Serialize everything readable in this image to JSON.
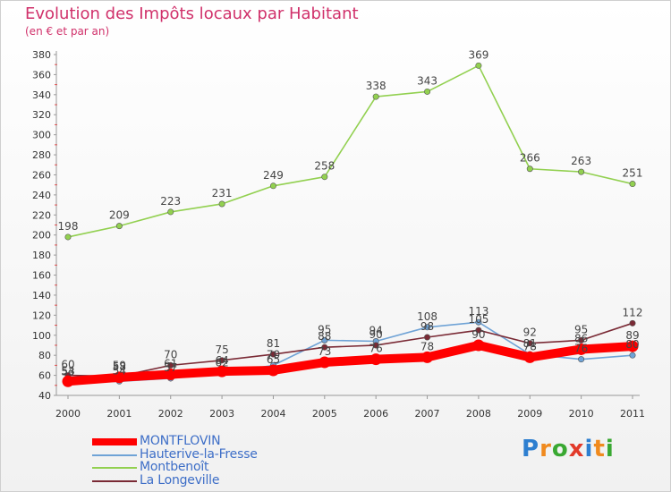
{
  "header": {
    "title": "Evolution des Impôts locaux par Habitant",
    "subtitle": "(en € et par an)"
  },
  "logo": {
    "text": "Proxiti",
    "letter_colors": [
      "#2e7fd0",
      "#f08a1e",
      "#39a832",
      "#e23a2a",
      "#2e7fd0",
      "#f08a1e",
      "#39a832"
    ]
  },
  "chart_data": {
    "type": "line",
    "x": [
      "2000",
      "2001",
      "2002",
      "2003",
      "2004",
      "2005",
      "2006",
      "2007",
      "2008",
      "2009",
      "2010",
      "2011"
    ],
    "ylim": [
      40,
      380
    ],
    "yticks": [
      40,
      60,
      80,
      100,
      120,
      140,
      160,
      180,
      200,
      220,
      240,
      260,
      280,
      300,
      320,
      340,
      360,
      380
    ],
    "grid": false,
    "legend_position": "bottom-left",
    "series": [
      {
        "name": "MONTFLOVIN",
        "color": "#ff0000",
        "values": [
          54,
          58,
          61,
          64,
          65,
          73,
          76,
          78,
          90,
          78,
          86,
          89
        ]
      },
      {
        "name": "Hauterive-la-Fresse",
        "color": "#6fa3d6",
        "values": [
          53,
          54,
          57,
          62,
          70,
          95,
          94,
          108,
          113,
          81,
          76,
          80
        ]
      },
      {
        "name": "Montbenoît",
        "color": "#92d050",
        "values": [
          198,
          209,
          223,
          231,
          249,
          258,
          338,
          343,
          369,
          266,
          263,
          251
        ]
      },
      {
        "name": "La Longeville",
        "color": "#7a2a35",
        "values": [
          60,
          59,
          70,
          75,
          81,
          88,
          90,
          98,
          105,
          92,
          95,
          112
        ]
      }
    ]
  }
}
